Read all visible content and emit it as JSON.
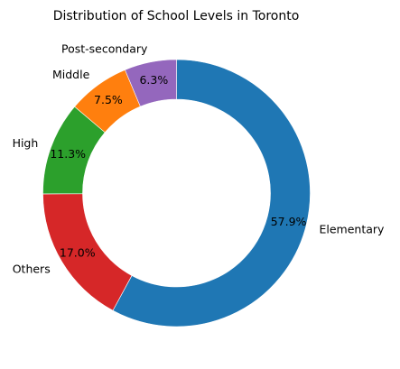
{
  "chart_data": {
    "type": "pie",
    "donut": true,
    "title": "Distribution of School Levels in Toronto",
    "slices": [
      {
        "label": "Elementary",
        "value": 57.9,
        "pct_text": "57.9%",
        "color": "#1f77b4"
      },
      {
        "label": "Others",
        "value": 17.0,
        "pct_text": "17.0%",
        "color": "#d62728"
      },
      {
        "label": "High",
        "value": 11.3,
        "pct_text": "11.3%",
        "color": "#2ca02c"
      },
      {
        "label": "Middle",
        "value": 7.5,
        "pct_text": "7.5%",
        "color": "#ff7f0e"
      },
      {
        "label": "Post-secondary",
        "value": 6.3,
        "pct_text": "6.3%",
        "color": "#9467bd"
      }
    ],
    "start_angle_deg": 90,
    "direction": "clockwise"
  }
}
